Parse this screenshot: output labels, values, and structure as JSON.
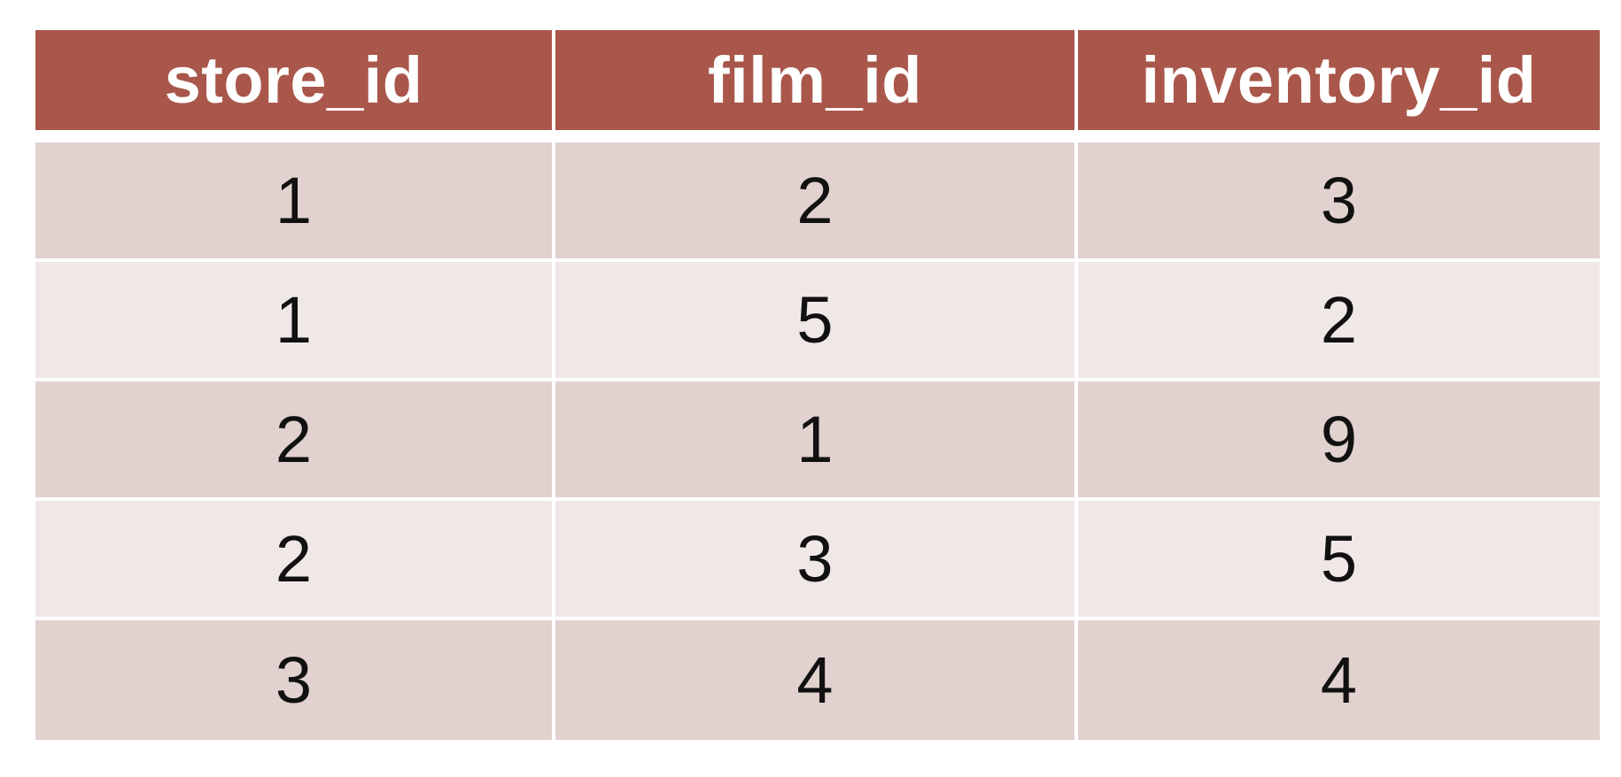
{
  "colors": {
    "header_bg": "#a9574b",
    "header_text": "#ffffff",
    "row_odd_bg": "#e1d1cf",
    "row_even_bg": "#f0e8e7",
    "cell_text": "#111111"
  },
  "table": {
    "headers": [
      "store_id",
      "film_id",
      "inventory_id"
    ],
    "rows": [
      [
        "1",
        "2",
        "3"
      ],
      [
        "1",
        "5",
        "2"
      ],
      [
        "2",
        "1",
        "9"
      ],
      [
        "2",
        "3",
        "5"
      ],
      [
        "3",
        "4",
        "4"
      ]
    ]
  }
}
